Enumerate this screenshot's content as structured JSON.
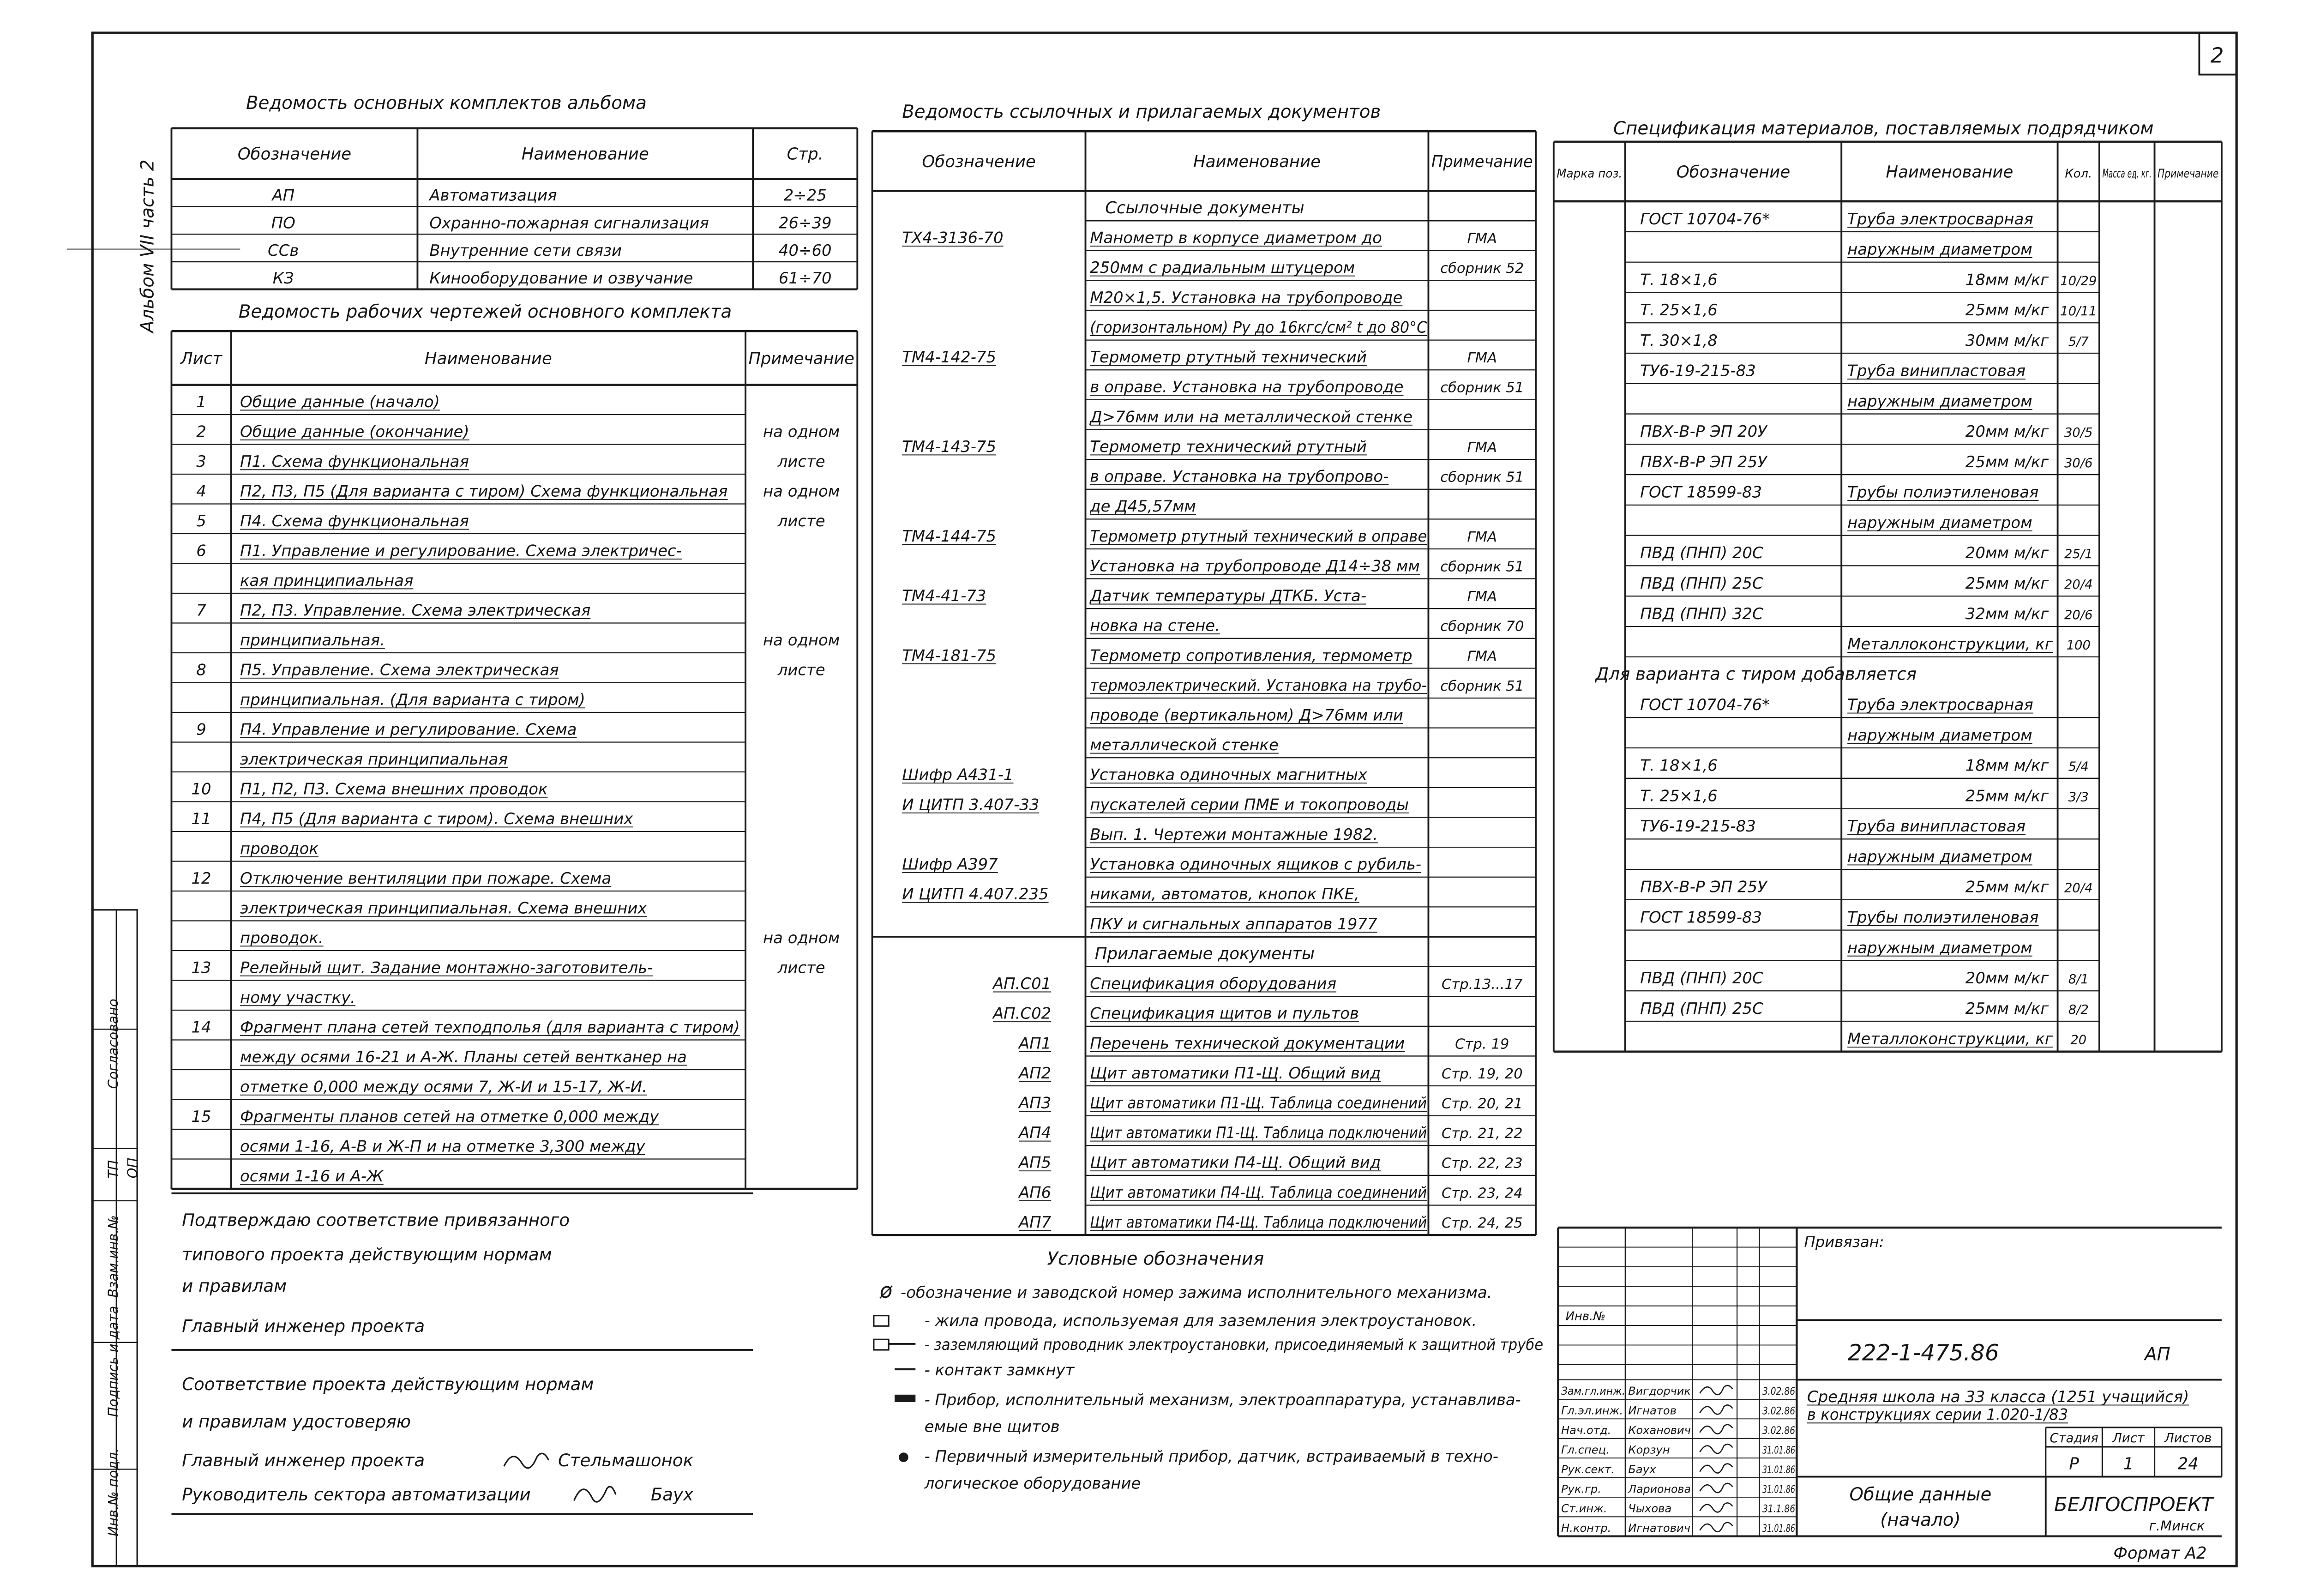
{
  "sheet_number": "2",
  "album_label": "Альбом VII часть 2",
  "main_sets": {
    "title": "Ведомость основных комплектов альбома",
    "headers": [
      "Обозначение",
      "Наименование",
      "Стр."
    ],
    "rows": [
      [
        "АП",
        "Автоматизация",
        "2÷25"
      ],
      [
        "ПО",
        "Охранно-пожарная сигнализация",
        "26÷39"
      ],
      [
        "ССв",
        "Внутренние сети связи",
        "40÷60"
      ],
      [
        "КЗ",
        "Кинооборудование и озвучание",
        "61÷70"
      ]
    ]
  },
  "working_drawings": {
    "title": "Ведомость рабочих чертежей основного комплекта",
    "headers": [
      "Лист",
      "Наименование",
      "Примечание"
    ],
    "rows": [
      {
        "sheet": "1",
        "text": "Общие данные (начало)"
      },
      {
        "sheet": "2",
        "text": "Общие данные (окончание)",
        "note": "на одном"
      },
      {
        "sheet": "3",
        "text": "П1. Схема функциональная",
        "note": "листе"
      },
      {
        "sheet": "4",
        "text": "П2, П3, П5 (Для варианта с тиром) Схема функциональная",
        "note": "на одном"
      },
      {
        "sheet": "5",
        "text": "П4. Схема функциональная",
        "note": "листе"
      },
      {
        "sheet": "6",
        "text": "П1. Управление и регулирование. Схема электричес-"
      },
      {
        "text": "кая принципиальная"
      },
      {
        "sheet": "7",
        "text": "П2, П3. Управление. Схема электрическая"
      },
      {
        "text": "принципиальная.",
        "note": "на одном"
      },
      {
        "sheet": "8",
        "text": "П5. Управление. Схема электрическая",
        "note": "листе"
      },
      {
        "text": "принципиальная. (Для варианта с тиром)"
      },
      {
        "sheet": "9",
        "text": "П4. Управление и регулирование. Схема"
      },
      {
        "text": "электрическая принципиальная"
      },
      {
        "sheet": "10",
        "text": "П1, П2, П3. Схема внешних проводок"
      },
      {
        "sheet": "11",
        "text": "П4, П5 (Для варианта с тиром). Схема внешних"
      },
      {
        "text": "проводок"
      },
      {
        "sheet": "12",
        "text": "Отключение вентиляции при пожаре. Схема"
      },
      {
        "text": "электрическая принципиальная. Схема внешних"
      },
      {
        "text": "проводок.",
        "note": "на одном"
      },
      {
        "sheet": "13",
        "text": "Релейный щит. Задание монтажно-заготовитель-",
        "note": "листе"
      },
      {
        "text": "ному участку."
      },
      {
        "sheet": "14",
        "text": "Фрагмент плана сетей техподполья (для варианта с тиром)"
      },
      {
        "text": "между осями 16-21 и А-Ж. Планы сетей вентканер на"
      },
      {
        "text": "отметке 0,000 между осями 7, Ж-И и 15-17, Ж-И."
      },
      {
        "sheet": "15",
        "text": "Фрагменты планов сетей на отметке 0,000 между"
      },
      {
        "text": "осями 1-16, А-В и Ж-П и на отметке 3,300 между"
      },
      {
        "text": "осями 1-16 и А-Ж"
      }
    ]
  },
  "documents": {
    "title": "Ведомость ссылочных и прилагаемых документов",
    "headers": [
      "Обозначение",
      "Наименование",
      "Примечание"
    ],
    "referenced_title": "Ссылочные документы",
    "referenced": [
      {
        "code": "ТХ4-3136-70",
        "text": "Манометр в корпусе диаметром до",
        "note": "ГМА"
      },
      {
        "text": "250мм с радиальным штуцером",
        "note": "сборник 52"
      },
      {
        "text": "М20×1,5. Установка на трубопроводе"
      },
      {
        "text": "(горизонтальном) Ру до 16кгс/см² t до 80°С"
      },
      {
        "code": "ТМ4-142-75",
        "text": "Термометр ртутный технический",
        "note": "ГМА"
      },
      {
        "text": "в оправе. Установка на трубопроводе",
        "note": "сборник 51"
      },
      {
        "text": "Д>76мм или на металлической стенке"
      },
      {
        "code": "ТМ4-143-75",
        "text": "Термометр технический ртутный",
        "note": "ГМА"
      },
      {
        "text": "в оправе. Установка на трубопрово-",
        "note": "сборник 51"
      },
      {
        "text": "де Д45,57мм"
      },
      {
        "code": "ТМ4-144-75",
        "text": "Термометр ртутный технический в оправе",
        "note": "ГМА"
      },
      {
        "text": "Установка на трубопроводе Д14÷38 мм",
        "note": "сборник 51"
      },
      {
        "code": "ТМ4-41-73",
        "text": "Датчик температуры ДТКБ. Уста-",
        "note": "ГМА"
      },
      {
        "text": "новка на стене.",
        "note": "сборник 70"
      },
      {
        "code": "ТМ4-181-75",
        "text": "Термометр сопротивления, термометр",
        "note": "ГМА"
      },
      {
        "text": "термоэлектрический. Установка на трубо-",
        "note": "сборник 51"
      },
      {
        "text": "проводе (вертикальном) Д>76мм или"
      },
      {
        "text": "металлической стенке"
      },
      {
        "code": "Шифр А431-1",
        "text": "Установка одиночных магнитных"
      },
      {
        "code": "И ЦИТП 3.407-33",
        "text": "пускателей серии ПМЕ и токопроводы"
      },
      {
        "text": "Вып. 1. Чертежи монтажные 1982."
      },
      {
        "code": "Шифр А397",
        "text": "Установка одиночных ящиков с рубиль-"
      },
      {
        "code": "И ЦИТП 4.407.235",
        "text": "никами, автоматов, кнопок ПКЕ,"
      },
      {
        "text": "ПКУ и сигнальных аппаратов 1977"
      }
    ],
    "attached_title": "Прилагаемые документы",
    "attached": [
      {
        "code": "АП.С01",
        "text": "Спецификация оборудования",
        "note": "Стр.13...17"
      },
      {
        "code": "АП.С02",
        "text": "Спецификация щитов и пультов"
      },
      {
        "code": "АП1",
        "text": "Перечень технической документации",
        "note": "Стр. 19"
      },
      {
        "code": "АП2",
        "text": "Щит автоматики П1-Щ. Общий вид",
        "note": "Стр. 19, 20"
      },
      {
        "code": "АП3",
        "text": "Щит автоматики П1-Щ. Таблица соединений",
        "note": "Стр. 20, 21"
      },
      {
        "code": "АП4",
        "text": "Щит автоматики П1-Щ. Таблица подключений",
        "note": "Стр. 21, 22"
      },
      {
        "code": "АП5",
        "text": "Щит автоматики П4-Щ. Общий вид",
        "note": "Стр. 22, 23"
      },
      {
        "code": "АП6",
        "text": "Щит автоматики П4-Щ. Таблица соединений",
        "note": "Стр. 23, 24"
      },
      {
        "code": "АП7",
        "text": "Щит автоматики П4-Щ. Таблица подключений",
        "note": "Стр. 24, 25"
      }
    ]
  },
  "materials": {
    "title": "Спецификация материалов, поставляемых подрядчиком",
    "headers": [
      "Марка поз.",
      "Обозначение",
      "Наименование",
      "Кол.",
      "Масса ед. кг.",
      "Примечание"
    ],
    "rows": [
      {
        "code": "ГОСТ 10704-76*",
        "name": "Труба электросварная"
      },
      {
        "name": "наружным диаметром"
      },
      {
        "code": "Т. 18×1,6",
        "name": "18мм м/кг",
        "qty": "10/29"
      },
      {
        "code": "Т. 25×1,6",
        "name": "25мм м/кг",
        "qty": "10/11"
      },
      {
        "code": "Т. 30×1,8",
        "name": "30мм м/кг",
        "qty": "5/7"
      },
      {
        "code": "ТУ6-19-215-83",
        "name": "Труба винипластовая"
      },
      {
        "name": "наружным диаметром"
      },
      {
        "code": "ПВХ-В-Р ЭП 20У",
        "name": "20мм м/кг",
        "qty": "30/5"
      },
      {
        "code": "ПВХ-В-Р ЭП 25У",
        "name": "25мм м/кг",
        "qty": "30/6"
      },
      {
        "code": "ГОСТ 18599-83",
        "name": "Трубы полиэтиленовая"
      },
      {
        "name": "наружным диаметром"
      },
      {
        "code": "ПВД (ПНП) 20С",
        "name": "20мм м/кг",
        "qty": "25/1"
      },
      {
        "code": "ПВД (ПНП) 25С",
        "name": "25мм м/кг",
        "qty": "20/4"
      },
      {
        "code": "ПВД (ПНП) 32С",
        "name": "32мм м/кг",
        "qty": "20/6"
      },
      {
        "name": "Металлоконструкции, кг",
        "qty": "100"
      },
      {
        "section": "Для варианта с тиром добавляется"
      },
      {
        "code": "ГОСТ 10704-76*",
        "name": "Труба электросварная"
      },
      {
        "name": "наружным диаметром"
      },
      {
        "code": "Т. 18×1,6",
        "name": "18мм м/кг",
        "qty": "5/4"
      },
      {
        "code": "Т. 25×1,6",
        "name": "25мм м/кг",
        "qty": "3/3"
      },
      {
        "code": "ТУ6-19-215-83",
        "name": "Труба винипластовая"
      },
      {
        "name": "наружным диаметром"
      },
      {
        "code": "ПВХ-В-Р ЭП 25У",
        "name": "25мм м/кг",
        "qty": "20/4"
      },
      {
        "code": "ГОСТ 18599-83",
        "name": "Трубы полиэтиленовая"
      },
      {
        "name": "наружным диаметром"
      },
      {
        "code": "ПВД (ПНП) 20С",
        "name": "20мм м/кг",
        "qty": "8/1"
      },
      {
        "code": "ПВД (ПНП) 25С",
        "name": "25мм м/кг",
        "qty": "8/2"
      },
      {
        "name": "Металлоконструкции, кг",
        "qty": "20"
      }
    ]
  },
  "approval": {
    "lines": [
      "Подтверждаю соответствие привязанного",
      "типового проекта действующим нормам",
      "и правилам",
      "Главный инженер проекта"
    ],
    "certify": [
      "Соответствие проекта действующим нормам",
      "и правилам удостоверяю"
    ],
    "signatories": [
      {
        "role": "Главный инженер проекта",
        "name": "Стельмашонок"
      },
      {
        "role": "Руководитель сектора автоматизации",
        "name": "Баух"
      }
    ]
  },
  "legend": {
    "title": "Условные обозначения",
    "items": [
      [
        "-обозначение и заводской номер зажима исполнительного механизма."
      ],
      [
        "- жила провода, используемая для заземления электроустановок."
      ],
      [
        "- заземляющий проводник электроустановки, присоединяемый к защитной трубе"
      ],
      [
        "- контакт замкнут"
      ],
      [
        "- Прибор, исполнительный механизм, электроаппаратура, устанавлива-",
        "емые вне щитов"
      ],
      [
        "- Первичный измерительный прибор, датчик, встраиваемый в техно-",
        "логическое оборудование"
      ]
    ]
  },
  "title_block": {
    "attached": "Привязан:",
    "inventory": "Инв.№",
    "code": "222-1-475.86",
    "mark": "АП",
    "project": [
      "Средняя школа на 33 класса (1251 учащийся)",
      "в конструкциях серии 1.020-1/83"
    ],
    "stage_headers": [
      "Стадия",
      "Лист",
      "Листов"
    ],
    "stage_values": [
      "Р",
      "1",
      "24"
    ],
    "sheet_title": [
      "Общие данные",
      "(начало)"
    ],
    "organization": [
      "БЕЛГОСПРОЕКТ",
      "г.Минск"
    ],
    "staff": [
      {
        "role": "Зам.гл.инж.",
        "name": "Вигдорчик",
        "date": "3.02.86"
      },
      {
        "role": "Гл.эл.инж.",
        "name": "Игнатов",
        "date": "3.02.86"
      },
      {
        "role": "Нач.отд.",
        "name": "Коханович",
        "date": "3.02.86"
      },
      {
        "role": "Гл.спец.",
        "name": "Корзун",
        "date": "31.01.86"
      },
      {
        "role": "Рук.сект.",
        "name": "Баух",
        "date": "31.01.86"
      },
      {
        "role": "Рук.гр.",
        "name": "Ларионова",
        "date": "31.01.86"
      },
      {
        "role": "Ст.инж.",
        "name": "Чыхова",
        "date": "31.1.86"
      },
      {
        "role": "Н.контр.",
        "name": "Игнатович",
        "date": "31.01.86"
      }
    ]
  },
  "stamps": [
    "Согласовано",
    "ТП",
    "ОП",
    "Взам.инв.№",
    "Подпись и дата",
    "Инв.№ подл."
  ],
  "format": "Формат А2"
}
